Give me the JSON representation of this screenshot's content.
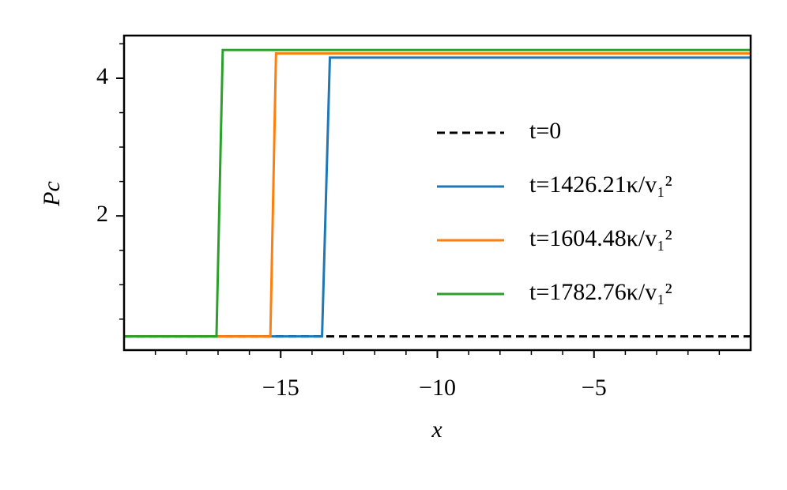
{
  "chart_data": {
    "type": "line",
    "xlabel": "x",
    "ylabel": "Pc",
    "xlim": [
      -20,
      0
    ],
    "ylim": [
      0.05,
      4.62
    ],
    "xticks": [
      {
        "value": -15,
        "label": "−15"
      },
      {
        "value": -10,
        "label": "−10"
      },
      {
        "value": -5,
        "label": "−5"
      }
    ],
    "xminorticks": [
      -19,
      -18,
      -17,
      -16,
      -14,
      -13,
      -12,
      -11,
      -9,
      -8,
      -7,
      -6,
      -4,
      -3,
      -2,
      -1
    ],
    "yticks": [
      2,
      4
    ],
    "yminorticks": [
      0.5,
      1,
      1.5,
      2.5,
      3,
      3.5,
      4.5
    ],
    "legend": "center right",
    "series": [
      {
        "name": "t=0",
        "color": "#000000",
        "dash": true,
        "x": [
          -20,
          0
        ],
        "values": [
          0.25,
          0.25
        ]
      },
      {
        "name": "t=1426.21κ/v₁²",
        "color": "#1f77b4",
        "x": [
          -20,
          -13.68,
          -13.43,
          0
        ],
        "values": [
          0.25,
          0.25,
          4.3,
          4.3
        ]
      },
      {
        "name": "t=1604.48κ/v₁²",
        "color": "#ff7f0e",
        "x": [
          -20,
          -15.33,
          -15.15,
          0
        ],
        "values": [
          0.25,
          0.25,
          4.36,
          4.36
        ]
      },
      {
        "name": "t=1782.76κ/v₁²",
        "color": "#2ca02c",
        "x": [
          -20,
          -17.05,
          -16.85,
          0
        ],
        "values": [
          0.25,
          0.25,
          4.41,
          4.41
        ]
      }
    ]
  }
}
